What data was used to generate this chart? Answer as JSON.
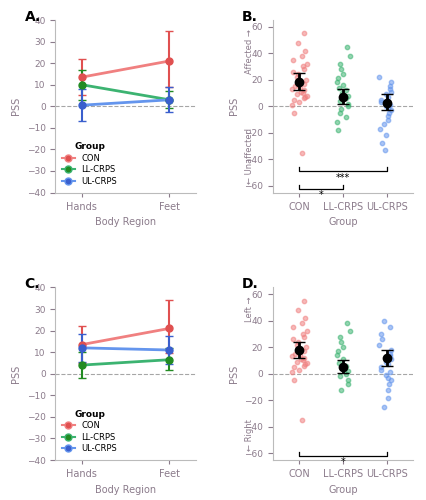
{
  "colors": {
    "CON": "#F08080",
    "LL_CRPS": "#3CB371",
    "UL_CRPS": "#6495ED"
  },
  "colors_dark": {
    "CON": "#E05050",
    "LL_CRPS": "#228B22",
    "UL_CRPS": "#3A5FCD"
  },
  "panel_A": {
    "CON": {
      "Hands": [
        13.5,
        5.0,
        22.0
      ],
      "Feet": [
        21.0,
        9.0,
        35.0
      ]
    },
    "LL_CRPS": {
      "Hands": [
        10.0,
        3.0,
        17.0
      ],
      "Feet": [
        3.0,
        -1.0,
        7.0
      ]
    },
    "UL_CRPS": {
      "Hands": [
        0.5,
        -7.0,
        8.0
      ],
      "Feet": [
        3.0,
        -2.5,
        9.0
      ]
    }
  },
  "panel_C": {
    "CON": {
      "Hands": [
        13.5,
        5.0,
        22.0
      ],
      "Feet": [
        21.0,
        9.5,
        34.0
      ]
    },
    "LL_CRPS": {
      "Hands": [
        4.0,
        -2.0,
        10.0
      ],
      "Feet": [
        6.5,
        1.5,
        12.0
      ]
    },
    "UL_CRPS": {
      "Hands": [
        12.0,
        5.5,
        18.5
      ],
      "Feet": [
        11.0,
        4.5,
        17.5
      ]
    }
  },
  "panel_B": {
    "CON": {
      "mean": 18.5,
      "ci_lo": 12.5,
      "ci_hi": 25.0,
      "dots": [
        55,
        48,
        42,
        38,
        35,
        32,
        30,
        28,
        26,
        24,
        22,
        20,
        18,
        17,
        16,
        15,
        14,
        13,
        12,
        11,
        10,
        9,
        8,
        7,
        6,
        5,
        3,
        1,
        -5,
        -35
      ]
    },
    "LL_CRPS": {
      "mean": 7.0,
      "ci_lo": 1.5,
      "ci_hi": 13.0,
      "dots": [
        45,
        38,
        32,
        28,
        24,
        21,
        18,
        16,
        14,
        12,
        10,
        8,
        6,
        4,
        2,
        0,
        -2,
        -5,
        -8,
        -12,
        -18
      ]
    },
    "UL_CRPS": {
      "mean": 2.5,
      "ci_lo": -3.0,
      "ci_hi": 9.0,
      "dots": [
        22,
        18,
        15,
        13,
        11,
        9,
        7,
        5,
        3,
        1,
        0,
        -1,
        -3,
        -5,
        -7,
        -10,
        -13,
        -17,
        -22,
        -28,
        -33
      ]
    }
  },
  "panel_D": {
    "CON": {
      "mean": 17.5,
      "ci_lo": 11.5,
      "ci_hi": 24.0,
      "dots": [
        55,
        48,
        42,
        38,
        35,
        32,
        30,
        28,
        26,
        24,
        22,
        20,
        18,
        17,
        16,
        15,
        14,
        13,
        12,
        11,
        10,
        9,
        8,
        7,
        6,
        5,
        3,
        1,
        -5,
        -35
      ]
    },
    "LL_CRPS": {
      "mean": 5.0,
      "ci_lo": 0.5,
      "ci_hi": 10.0,
      "dots": [
        38,
        32,
        28,
        24,
        20,
        17,
        14,
        11,
        8,
        6,
        4,
        2,
        0,
        -2,
        -5,
        -8,
        -12
      ]
    },
    "UL_CRPS": {
      "mean": 11.5,
      "ci_lo": 5.5,
      "ci_hi": 17.5,
      "dots": [
        40,
        35,
        30,
        26,
        22,
        18,
        15,
        13,
        11,
        9,
        7,
        5,
        3,
        1,
        -1,
        -3,
        -5,
        -8,
        -12,
        -18,
        -25
      ]
    }
  },
  "ylim_line": [
    -40,
    40
  ],
  "ylim_dot": [
    -65,
    65
  ],
  "ylabel": "PSS",
  "xlabel_line": "Body Region",
  "xlabel_dot": "Group",
  "xticks_line": [
    "Hands",
    "Feet"
  ],
  "xticks_dot": [
    "CON",
    "LL-CRPS",
    "UL-CRPS"
  ],
  "group_labels": [
    "CON",
    "LL-CRPS",
    "UL-CRPS"
  ],
  "panel_labels": [
    "A.",
    "B.",
    "C.",
    "D."
  ],
  "ylabel_A_top": "Affected →",
  "ylabel_A_bot": "← Unaffected",
  "ylabel_C_top": "Left →",
  "ylabel_C_bot": "← Right",
  "sig_B": [
    [
      "CON",
      "LL_CRPS",
      "*"
    ],
    [
      "CON",
      "UL_CRPS",
      "***"
    ]
  ],
  "sig_D": [
    [
      "CON",
      "UL_CRPS",
      "*"
    ]
  ]
}
